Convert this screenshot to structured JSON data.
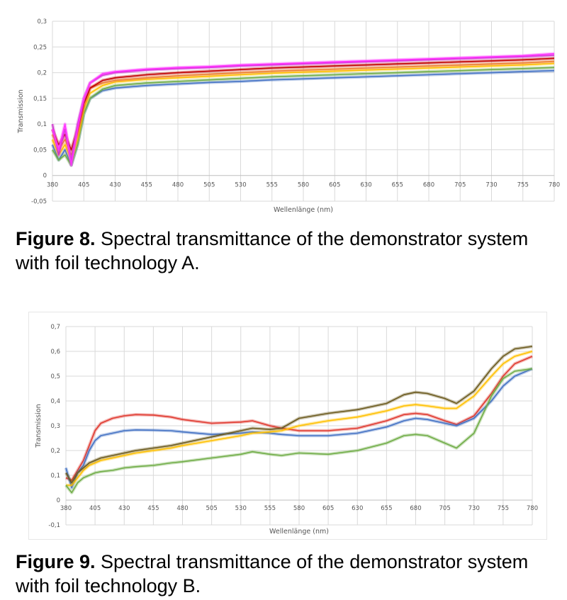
{
  "figures": [
    {
      "caption_label": "Figure 8.",
      "caption_text": " Spectral transmittance of the demonstrator system with foil technology A."
    },
    {
      "caption_label": "Figure 9.",
      "caption_text": " Spectral transmittance of the demonstrator system with foil technology B."
    }
  ],
  "chart_data": [
    {
      "type": "line",
      "title": "",
      "xlabel": "Wellenlänge (nm)",
      "ylabel": "Transmission",
      "xlim": [
        380,
        780
      ],
      "ylim": [
        -0.05,
        0.3
      ],
      "x_ticks": [
        380,
        405,
        430,
        455,
        480,
        505,
        530,
        555,
        580,
        605,
        630,
        655,
        680,
        705,
        730,
        755,
        780
      ],
      "y_ticks": [
        "-0,05",
        "0",
        "0,05",
        "0,1",
        "0,15",
        "0,2",
        "0,25",
        "0,3"
      ],
      "y_tick_values": [
        -0.05,
        0,
        0.05,
        0.1,
        0.15,
        0.2,
        0.25,
        0.3
      ],
      "grid": true,
      "legend": "none",
      "series": [
        {
          "color": "#4472c4",
          "x": [
            380,
            385,
            390,
            395,
            400,
            405,
            410,
            420,
            430,
            455,
            480,
            505,
            530,
            555,
            580,
            605,
            630,
            655,
            680,
            705,
            730,
            755,
            780
          ],
          "values": [
            0.06,
            0.03,
            0.05,
            0.02,
            0.06,
            0.12,
            0.15,
            0.165,
            0.17,
            0.175,
            0.178,
            0.181,
            0.183,
            0.186,
            0.188,
            0.19,
            0.192,
            0.194,
            0.196,
            0.198,
            0.2,
            0.202,
            0.204
          ]
        },
        {
          "color": "#70ad47",
          "x": [
            380,
            385,
            390,
            395,
            400,
            405,
            410,
            420,
            430,
            455,
            480,
            505,
            530,
            555,
            580,
            605,
            630,
            655,
            680,
            705,
            730,
            755,
            780
          ],
          "values": [
            0.05,
            0.03,
            0.04,
            0.02,
            0.06,
            0.12,
            0.15,
            0.168,
            0.175,
            0.18,
            0.183,
            0.186,
            0.189,
            0.192,
            0.194,
            0.196,
            0.198,
            0.2,
            0.202,
            0.204,
            0.206,
            0.208,
            0.21
          ]
        },
        {
          "color": "#ffc000",
          "x": [
            380,
            385,
            390,
            395,
            400,
            405,
            410,
            420,
            430,
            455,
            480,
            505,
            530,
            555,
            580,
            605,
            630,
            655,
            680,
            705,
            730,
            755,
            780
          ],
          "values": [
            0.07,
            0.04,
            0.06,
            0.03,
            0.07,
            0.13,
            0.16,
            0.175,
            0.182,
            0.187,
            0.19,
            0.193,
            0.196,
            0.199,
            0.201,
            0.203,
            0.205,
            0.207,
            0.209,
            0.211,
            0.213,
            0.215,
            0.218
          ]
        },
        {
          "color": "#ed7d31",
          "x": [
            380,
            385,
            390,
            395,
            400,
            405,
            410,
            420,
            430,
            455,
            480,
            505,
            530,
            555,
            580,
            605,
            630,
            655,
            680,
            705,
            730,
            755,
            780
          ],
          "values": [
            0.08,
            0.05,
            0.07,
            0.04,
            0.08,
            0.14,
            0.17,
            0.18,
            0.185,
            0.19,
            0.194,
            0.197,
            0.2,
            0.203,
            0.205,
            0.207,
            0.209,
            0.211,
            0.213,
            0.215,
            0.217,
            0.219,
            0.222
          ]
        },
        {
          "color": "#c00000",
          "x": [
            380,
            385,
            390,
            395,
            400,
            405,
            410,
            420,
            430,
            455,
            480,
            505,
            530,
            555,
            580,
            605,
            630,
            655,
            680,
            705,
            730,
            755,
            780
          ],
          "values": [
            0.09,
            0.06,
            0.08,
            0.05,
            0.09,
            0.14,
            0.17,
            0.185,
            0.19,
            0.196,
            0.2,
            0.203,
            0.206,
            0.209,
            0.211,
            0.213,
            0.215,
            0.217,
            0.219,
            0.221,
            0.223,
            0.225,
            0.228
          ]
        },
        {
          "color": "#cc33cc",
          "x": [
            380,
            385,
            390,
            395,
            400,
            405,
            410,
            420,
            430,
            455,
            480,
            505,
            530,
            555,
            580,
            605,
            630,
            655,
            680,
            705,
            730,
            755,
            780
          ],
          "values": [
            0.1,
            0.04,
            0.09,
            0.03,
            0.1,
            0.15,
            0.18,
            0.195,
            0.2,
            0.205,
            0.208,
            0.21,
            0.213,
            0.215,
            0.217,
            0.219,
            0.221,
            0.223,
            0.225,
            0.227,
            0.229,
            0.231,
            0.234
          ]
        },
        {
          "color": "#ff33ff",
          "x": [
            380,
            385,
            390,
            395,
            400,
            405,
            410,
            420,
            430,
            455,
            480,
            505,
            530,
            555,
            580,
            605,
            630,
            655,
            680,
            705,
            730,
            755,
            780
          ],
          "values": [
            0.09,
            0.05,
            0.1,
            0.02,
            0.09,
            0.15,
            0.18,
            0.198,
            0.202,
            0.207,
            0.21,
            0.212,
            0.215,
            0.217,
            0.219,
            0.221,
            0.223,
            0.225,
            0.227,
            0.229,
            0.231,
            0.233,
            0.237
          ]
        }
      ]
    },
    {
      "type": "line",
      "title": "",
      "xlabel": "Wellenlänge (nm)",
      "ylabel": "Transmission",
      "xlim": [
        380,
        780
      ],
      "ylim": [
        -0.1,
        0.7
      ],
      "x_ticks": [
        380,
        405,
        430,
        455,
        480,
        505,
        530,
        555,
        580,
        605,
        630,
        655,
        680,
        705,
        730,
        755,
        780
      ],
      "y_ticks": [
        "-0,1",
        "0",
        "0,1",
        "0,2",
        "0,3",
        "0,4",
        "0,5",
        "0,6",
        "0,7"
      ],
      "y_tick_values": [
        -0.1,
        0,
        0.1,
        0.2,
        0.3,
        0.4,
        0.5,
        0.6,
        0.7
      ],
      "grid": true,
      "legend": "none",
      "series": [
        {
          "color": "#e03a30",
          "x": [
            380,
            385,
            390,
            395,
            400,
            405,
            410,
            420,
            430,
            440,
            455,
            470,
            480,
            505,
            530,
            540,
            555,
            565,
            580,
            605,
            630,
            655,
            670,
            680,
            690,
            705,
            715,
            730,
            745,
            755,
            765,
            780
          ],
          "values": [
            0.09,
            0.08,
            0.12,
            0.16,
            0.22,
            0.28,
            0.31,
            0.33,
            0.34,
            0.345,
            0.343,
            0.335,
            0.325,
            0.31,
            0.315,
            0.32,
            0.3,
            0.29,
            0.28,
            0.28,
            0.29,
            0.32,
            0.345,
            0.35,
            0.345,
            0.32,
            0.305,
            0.34,
            0.43,
            0.5,
            0.55,
            0.58
          ]
        },
        {
          "color": "#4472c4",
          "x": [
            380,
            385,
            390,
            395,
            400,
            405,
            410,
            420,
            430,
            440,
            455,
            470,
            480,
            505,
            530,
            540,
            555,
            565,
            580,
            605,
            630,
            655,
            670,
            680,
            690,
            705,
            715,
            730,
            745,
            755,
            765,
            780
          ],
          "values": [
            0.13,
            0.05,
            0.11,
            0.14,
            0.2,
            0.24,
            0.26,
            0.27,
            0.28,
            0.283,
            0.282,
            0.28,
            0.275,
            0.265,
            0.27,
            0.275,
            0.27,
            0.265,
            0.26,
            0.26,
            0.27,
            0.295,
            0.32,
            0.33,
            0.325,
            0.31,
            0.3,
            0.33,
            0.4,
            0.46,
            0.5,
            0.53
          ]
        },
        {
          "color": "#ffc000",
          "x": [
            380,
            385,
            390,
            395,
            400,
            405,
            410,
            420,
            430,
            440,
            455,
            470,
            480,
            505,
            530,
            540,
            555,
            565,
            580,
            605,
            630,
            655,
            670,
            680,
            690,
            705,
            715,
            730,
            745,
            755,
            765,
            780
          ],
          "values": [
            0.06,
            0.06,
            0.09,
            0.12,
            0.14,
            0.15,
            0.16,
            0.17,
            0.18,
            0.19,
            0.2,
            0.21,
            0.22,
            0.24,
            0.26,
            0.27,
            0.275,
            0.28,
            0.3,
            0.32,
            0.335,
            0.36,
            0.38,
            0.385,
            0.38,
            0.37,
            0.37,
            0.42,
            0.5,
            0.55,
            0.58,
            0.6
          ]
        },
        {
          "color": "#6b5a1e",
          "x": [
            380,
            385,
            390,
            395,
            400,
            405,
            410,
            420,
            430,
            440,
            455,
            470,
            480,
            505,
            530,
            540,
            555,
            565,
            580,
            605,
            630,
            655,
            670,
            680,
            690,
            705,
            715,
            730,
            745,
            755,
            765,
            780
          ],
          "values": [
            0.11,
            0.07,
            0.11,
            0.13,
            0.15,
            0.16,
            0.17,
            0.18,
            0.19,
            0.2,
            0.21,
            0.22,
            0.23,
            0.255,
            0.28,
            0.29,
            0.285,
            0.29,
            0.33,
            0.35,
            0.365,
            0.39,
            0.425,
            0.435,
            0.43,
            0.41,
            0.39,
            0.44,
            0.53,
            0.58,
            0.61,
            0.62
          ]
        },
        {
          "color": "#70ad47",
          "x": [
            380,
            385,
            390,
            395,
            400,
            405,
            410,
            420,
            430,
            440,
            455,
            470,
            480,
            505,
            530,
            540,
            555,
            565,
            580,
            605,
            630,
            655,
            670,
            680,
            690,
            705,
            715,
            730,
            745,
            755,
            765,
            780
          ],
          "values": [
            0.06,
            0.03,
            0.07,
            0.09,
            0.1,
            0.11,
            0.115,
            0.12,
            0.13,
            0.135,
            0.14,
            0.15,
            0.155,
            0.17,
            0.185,
            0.195,
            0.185,
            0.18,
            0.19,
            0.185,
            0.2,
            0.23,
            0.26,
            0.265,
            0.26,
            0.23,
            0.21,
            0.27,
            0.42,
            0.49,
            0.52,
            0.53
          ]
        }
      ]
    }
  ]
}
